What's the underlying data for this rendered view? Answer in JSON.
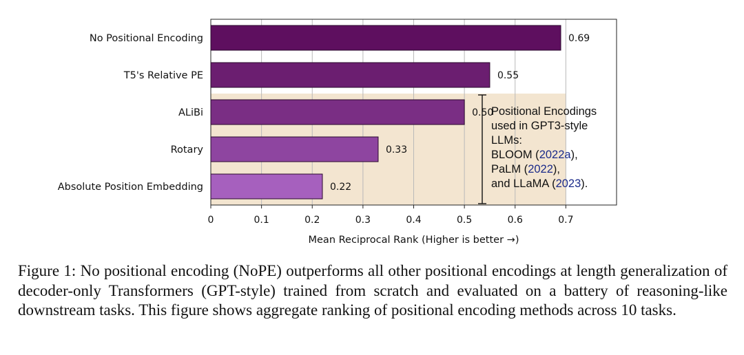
{
  "chart_data": {
    "type": "bar",
    "orientation": "horizontal",
    "categories": [
      "No Positional Encoding",
      "T5's Relative PE",
      "ALiBi",
      "Rotary",
      "Absolute Position Embedding"
    ],
    "values": [
      0.69,
      0.55,
      0.5,
      0.33,
      0.22
    ],
    "value_labels": [
      "0.69",
      "0.55",
      "0.50",
      "0.33",
      "0.22"
    ],
    "bar_colors": [
      "#5e0f5f",
      "#6b1e70",
      "#7a2e84",
      "#8e45a0",
      "#a660be"
    ],
    "xlabel": "Mean Reciprocal Rank (Higher is better →)",
    "xlim": [
      0,
      0.8
    ],
    "xticks": [
      0,
      0.1,
      0.2,
      0.3,
      0.4,
      0.5,
      0.6,
      0.7
    ],
    "xtick_labels": [
      "0",
      "0.1",
      "0.2",
      "0.3",
      "0.4",
      "0.5",
      "0.6",
      "0.7"
    ],
    "grid": "vertical",
    "highlight_region_color": "#f3e5d0",
    "highlight_categories": [
      "ALiBi",
      "Rotary",
      "Absolute Position Embedding"
    ]
  },
  "annotation": {
    "line1": "Positional Encodings",
    "line2": "used in GPT3-style",
    "line3": "LLMs:",
    "bloom_name": "BLOOM (",
    "bloom_year": "2022a",
    "bloom_end": "),",
    "palm_name": "PaLM (",
    "palm_year": "2022",
    "palm_end": "),",
    "llama_name": "and LLaMA (",
    "llama_year": "2023",
    "llama_end": ")."
  },
  "caption": {
    "text": "Figure 1: No positional encoding (NoPE) outperforms all other positional encodings at length generalization of decoder-only Transformers (GPT-style) trained from scratch and evaluated on a battery of reasoning-like downstream tasks. This figure shows aggregate ranking of positional encoding methods across 10 tasks."
  }
}
